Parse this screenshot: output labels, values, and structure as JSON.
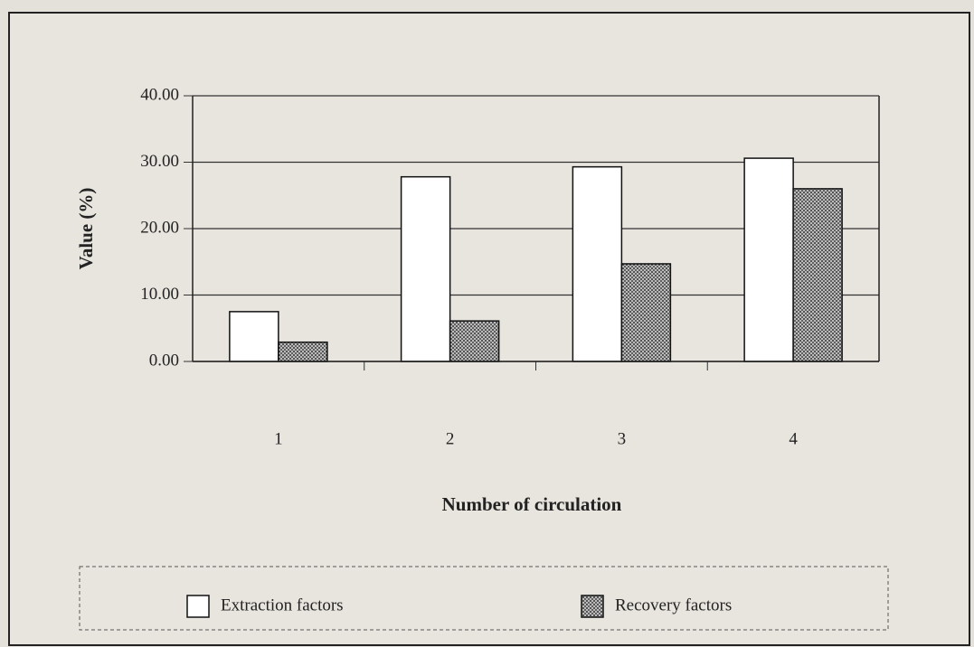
{
  "chart_data": {
    "type": "bar",
    "categories": [
      "1",
      "2",
      "3",
      "4"
    ],
    "series": [
      {
        "name": "Extraction factors",
        "color": "#ffffff",
        "values": [
          7.5,
          27.8,
          29.3,
          30.6
        ]
      },
      {
        "name": "Recovery factors",
        "color": "#8a8a8a",
        "values": [
          2.9,
          6.1,
          14.7,
          26.0
        ]
      }
    ],
    "ylabel": "Value (%)",
    "xlabel": "Number of circulation",
    "ylim": [
      0,
      40
    ],
    "yticks": [
      {
        "value": 0,
        "label": "0.00"
      },
      {
        "value": 10,
        "label": "10.00"
      },
      {
        "value": 20,
        "label": "20.00"
      },
      {
        "value": 30,
        "label": "30.00"
      },
      {
        "value": 40,
        "label": "40.00"
      }
    ],
    "grid": true,
    "legend": "bottom"
  }
}
